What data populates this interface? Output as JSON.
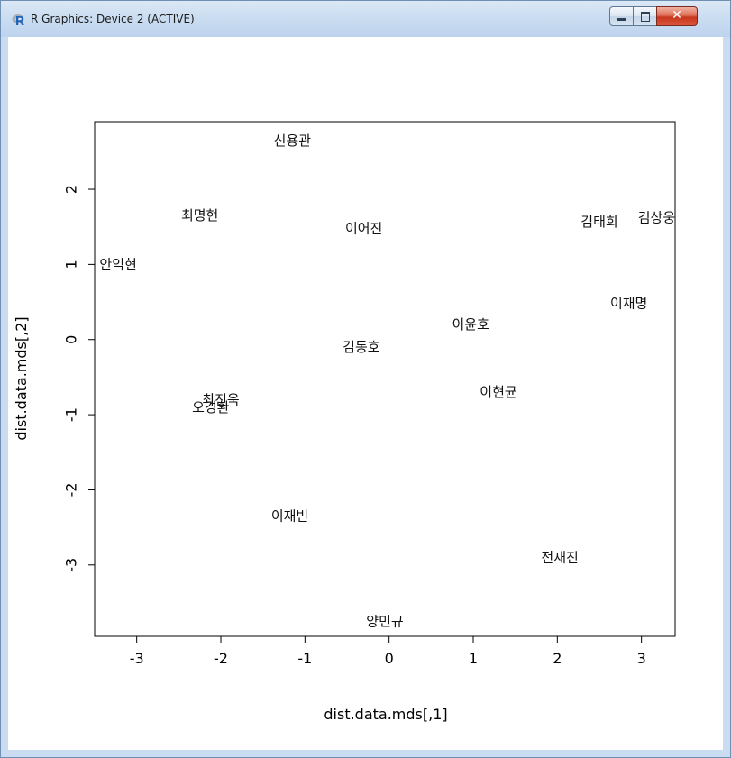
{
  "window": {
    "title": "R Graphics: Device 2 (ACTIVE)",
    "icon": "r-logo-icon",
    "buttons": {
      "minimize": "minimize-icon",
      "maximize": "maximize-icon",
      "close": "close-icon"
    }
  },
  "chart_data": {
    "type": "scatter",
    "title": "",
    "xlabel": "dist.data.mds[,1]",
    "ylabel": "dist.data.mds[,2]",
    "xlim": [
      -3.5,
      3.4
    ],
    "ylim": [
      -3.95,
      2.9
    ],
    "xticks": [
      -3,
      -2,
      -1,
      0,
      1,
      2,
      3
    ],
    "yticks": [
      -3,
      -2,
      -1,
      0,
      1,
      2
    ],
    "grid": false,
    "points": [
      {
        "label": "신용관",
        "x": -1.15,
        "y": 2.65
      },
      {
        "label": "최명현",
        "x": -2.25,
        "y": 1.65
      },
      {
        "label": "이어진",
        "x": -0.3,
        "y": 1.48
      },
      {
        "label": "김태희",
        "x": 2.5,
        "y": 1.57
      },
      {
        "label": "김상웅",
        "x": 3.18,
        "y": 1.62
      },
      {
        "label": "안익현",
        "x": -3.22,
        "y": 1.0
      },
      {
        "label": "이재명",
        "x": 2.85,
        "y": 0.48
      },
      {
        "label": "이윤호",
        "x": 0.97,
        "y": 0.2
      },
      {
        "label": "김동호",
        "x": -0.33,
        "y": -0.1
      },
      {
        "label": "이현균",
        "x": 1.3,
        "y": -0.7
      },
      {
        "label": "최진욱",
        "x": -2.0,
        "y": -0.8
      },
      {
        "label": "오경환",
        "x": -2.12,
        "y": -0.9
      },
      {
        "label": "이재빈",
        "x": -1.18,
        "y": -2.35
      },
      {
        "label": "전재진",
        "x": 2.03,
        "y": -2.9
      },
      {
        "label": "양민규",
        "x": -0.05,
        "y": -3.75
      }
    ]
  }
}
